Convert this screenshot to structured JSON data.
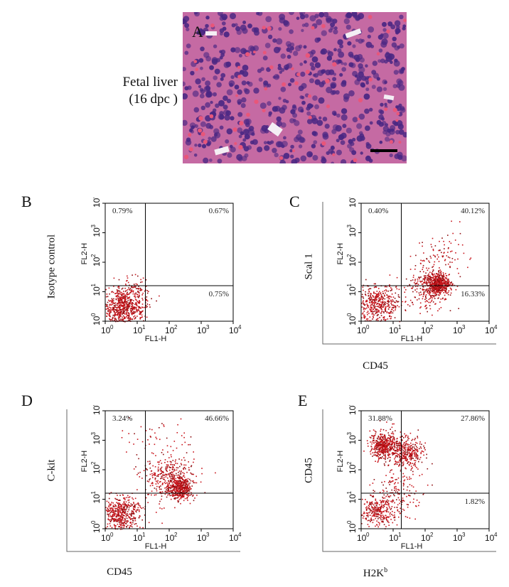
{
  "panel_a": {
    "letter": "A",
    "label_line1": "Fetal liver",
    "label_line2": "(16 dpc )"
  },
  "chart_data": [
    {
      "type": "scatter",
      "panel": "B",
      "ylabel": "Isotype control",
      "xlabel": "",
      "instrument_x": "FL1-H",
      "instrument_y": "FL2-H",
      "xlim": [
        1,
        10000
      ],
      "ylim": [
        1,
        10000
      ],
      "scale": "log",
      "gate": [
        18,
        16
      ],
      "quadrants": {
        "ul": "0.79%",
        "ur": "0.67%",
        "lr": "0.75%"
      },
      "populations": [
        {
          "x": 3.5,
          "y": 3.0,
          "spread": 0.32,
          "count": 700
        },
        {
          "x": 8,
          "y": 12,
          "spread": 0.25,
          "count": 60
        }
      ],
      "ticks": [
        "10",
        "10",
        "10",
        "10",
        "10"
      ],
      "tick_exp": [
        "0",
        "1",
        "2",
        "3",
        "4"
      ]
    },
    {
      "type": "scatter",
      "panel": "C",
      "ylabel": "Scal 1",
      "xlabel": "CD45",
      "instrument_x": "FL1-H",
      "instrument_y": "FL2-H",
      "xlim": [
        1,
        10000
      ],
      "ylim": [
        1,
        10000
      ],
      "scale": "log",
      "gate": [
        18,
        16
      ],
      "quadrants": {
        "ul": "0.40%",
        "ur": "40.12%",
        "lr": "16.33%"
      },
      "populations": [
        {
          "x": 3.5,
          "y": 4.0,
          "spread": 0.33,
          "count": 450
        },
        {
          "x": 250,
          "y": 20,
          "spread": 0.18,
          "count": 500
        },
        {
          "x": 120,
          "y": 15,
          "spread": 0.35,
          "count": 250
        },
        {
          "x": 300,
          "y": 200,
          "spread": 0.4,
          "count": 80
        }
      ],
      "ticks": [
        "10",
        "10",
        "10",
        "10",
        "10"
      ],
      "tick_exp": [
        "0",
        "1",
        "2",
        "3",
        "4"
      ]
    },
    {
      "type": "scatter",
      "panel": "D",
      "ylabel": "C-kit",
      "xlabel": "CD45",
      "instrument_x": "FL1-H",
      "instrument_y": "FL2-H",
      "xlim": [
        1,
        10000
      ],
      "ylim": [
        1,
        10000
      ],
      "scale": "log",
      "gate": [
        18,
        16
      ],
      "quadrants": {
        "ul": "3.24%",
        "ur": "46.66%",
        "lr": ""
      },
      "populations": [
        {
          "x": 3.0,
          "y": 3.0,
          "spread": 0.3,
          "count": 500
        },
        {
          "x": 200,
          "y": 25,
          "spread": 0.18,
          "count": 400
        },
        {
          "x": 100,
          "y": 60,
          "spread": 0.4,
          "count": 350
        },
        {
          "x": 60,
          "y": 800,
          "spread": 0.5,
          "count": 60
        }
      ],
      "ticks": [
        "10",
        "10",
        "10",
        "10",
        "10"
      ],
      "tick_exp": [
        "0",
        "1",
        "2",
        "3",
        "4"
      ]
    },
    {
      "type": "scatter",
      "panel": "E",
      "ylabel": "CD45",
      "xlabel": "H2K",
      "xlabel_sup": "b",
      "instrument_x": "FL1-H",
      "instrument_y": "FL2-H",
      "xlim": [
        1,
        10000
      ],
      "ylim": [
        1,
        10000
      ],
      "scale": "log",
      "gate": [
        18,
        16
      ],
      "quadrants": {
        "ul": "31.88%",
        "ur": "27.86%",
        "lr": "1.82%"
      },
      "populations": [
        {
          "x": 5,
          "y": 700,
          "spread": 0.22,
          "count": 450
        },
        {
          "x": 25,
          "y": 400,
          "spread": 0.28,
          "count": 350
        },
        {
          "x": 3,
          "y": 4,
          "spread": 0.28,
          "count": 300
        },
        {
          "x": 15,
          "y": 20,
          "spread": 0.4,
          "count": 150
        }
      ],
      "ticks": [
        "10",
        "10",
        "10",
        "10",
        "10"
      ],
      "tick_exp": [
        "0",
        "1",
        "2",
        "3",
        "4"
      ]
    }
  ],
  "colors": {
    "dot": "#c8141b",
    "dot_dark": "#8e0d10",
    "frame": "#000000",
    "tissue_bg": "#c56aa3",
    "nucleus": "#4a2783",
    "rbc": "#e8567a"
  }
}
